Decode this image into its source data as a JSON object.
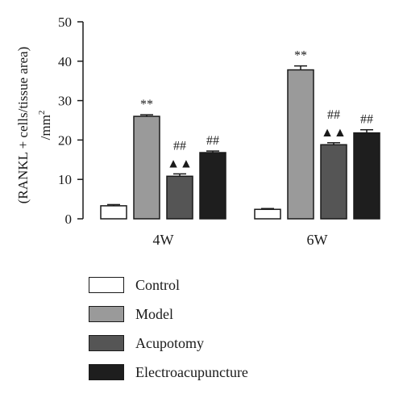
{
  "chart_data": {
    "type": "bar",
    "title": "",
    "xlabel": "",
    "ylabel_line1": "(RANKL + cells/tissue area)",
    "ylabel_line2": "/mm",
    "ylabel_superscript": "2",
    "ylim": [
      0,
      50
    ],
    "yticks": [
      "0",
      "10",
      "20",
      "30",
      "40",
      "50"
    ],
    "categories": [
      "4W",
      "6W"
    ],
    "legend_position": "bottom",
    "series": [
      {
        "name": "Control",
        "color": "#ffffff",
        "values": [
          3.3,
          2.4
        ],
        "errors": [
          0.3,
          0.2
        ],
        "annotations": [
          "",
          ""
        ]
      },
      {
        "name": "Model",
        "color": "#9a9a9a",
        "values": [
          26.0,
          37.8
        ],
        "errors": [
          0.4,
          1.0
        ],
        "annotations": [
          "**",
          "**"
        ]
      },
      {
        "name": "Acupotomy",
        "color": "#555555",
        "values": [
          10.8,
          18.8
        ],
        "errors": [
          0.6,
          0.5
        ],
        "annotations": [
          "##\n▲▲",
          "##\n▲▲"
        ]
      },
      {
        "name": "Electroacupuncture",
        "color": "#1e1e1e",
        "values": [
          16.8,
          21.8
        ],
        "errors": [
          0.4,
          0.8
        ],
        "annotations": [
          "##",
          "##"
        ]
      }
    ]
  }
}
